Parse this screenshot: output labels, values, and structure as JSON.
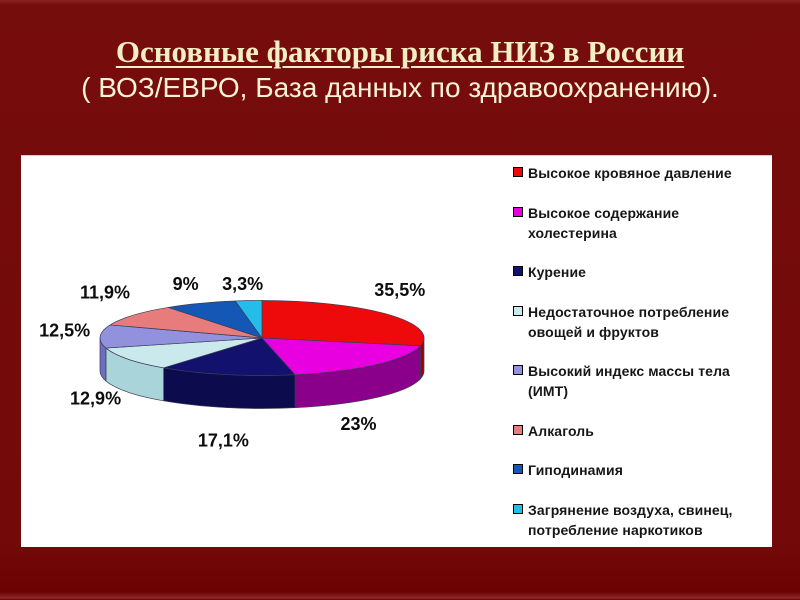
{
  "slide": {
    "title": "Основные факторы риска НИЗ в России",
    "subtitle": "( ВОЗ/ЕВРО, База данных по здравоохранению).",
    "colors": {
      "background": "#730909",
      "title_text": "#f4eec4",
      "subtitle_text": "#f8f3d6",
      "panel_background": "#ffffff",
      "label_text": "#0d0d0d"
    }
  },
  "chart_data": {
    "type": "pie",
    "style": "3d-exploded-none",
    "unit": "%",
    "title": "",
    "legend_position": "right",
    "start_angle_deg": 90,
    "direction": "clockwise",
    "categories": [
      "Высокое кровяное давление",
      "Высокое содержание холестерина",
      "Курение",
      "Недостаточное потребление овощей и фруктов",
      "Высокий индекс массы тела (ИМТ)",
      "Алкаголь",
      "Гиподинамия",
      "Загрянение воздуха, свинец, потребление наркотиков"
    ],
    "values": [
      35.5,
      23,
      17.1,
      12.9,
      12.5,
      11.9,
      9,
      3.3
    ],
    "labels": [
      "35,5%",
      "23%",
      "17,1%",
      "12,9%",
      "12,5%",
      "11,9%",
      "9%",
      "3,3%"
    ],
    "colors": [
      "#ee0a0a",
      "#e800e0",
      "#12126e",
      "#c9e9ed",
      "#9191de",
      "#e87c7c",
      "#1557b4",
      "#24bce8"
    ],
    "wall_colors": [
      "#9c0408",
      "#8a008a",
      "#0b0b4e",
      "#a9d4d9",
      "#6e6ec0",
      "#b85a5e",
      "#0e3f86",
      "#1590b8"
    ]
  }
}
